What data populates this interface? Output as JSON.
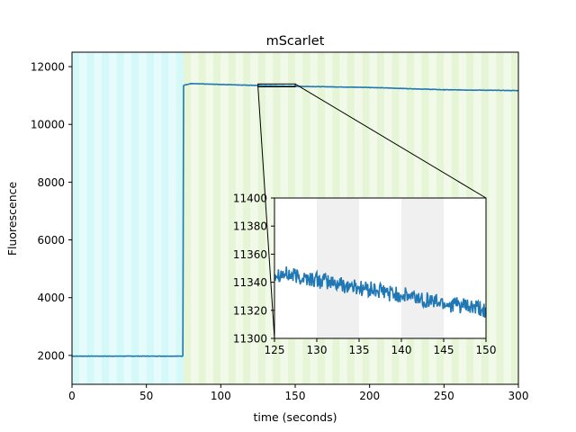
{
  "chart_data": {
    "type": "line",
    "title": "mScarlet",
    "xlabel": "time (seconds)",
    "ylabel": "Fluorescence",
    "xlim": [
      0,
      300
    ],
    "ylim": [
      1000,
      12500
    ],
    "x_ticks": [
      0,
      50,
      100,
      150,
      200,
      250,
      300
    ],
    "x_tick_labels": [
      "0",
      "50",
      "100",
      "150",
      "200",
      "250",
      "300"
    ],
    "y_ticks": [
      2000,
      4000,
      6000,
      8000,
      10000,
      12000
    ],
    "y_tick_labels": [
      "2000",
      "4000",
      "6000",
      "8000",
      "10000",
      "12000"
    ],
    "grid": false,
    "legend": "none",
    "background_bands": [
      {
        "phase": "before",
        "x_start": 0,
        "x_end": 75,
        "stripe_period": 5,
        "colors": [
          "#d5f8f8",
          "#e6fbfb"
        ]
      },
      {
        "phase": "after",
        "x_start": 75,
        "x_end": 300,
        "stripe_period": 5,
        "colors": [
          "#e6f5d5",
          "#f1f9e8"
        ]
      }
    ],
    "series": [
      {
        "color": "#1f77b4",
        "segments": [
          {
            "x_start": 0,
            "x_end": 74.5,
            "y_start": 1975,
            "y_end": 1975
          },
          {
            "x_start": 74.5,
            "x_end": 75,
            "y_start": 1975,
            "y_end": 11360
          },
          {
            "x_start": 75,
            "x_end": 80,
            "y_start": 11360,
            "y_end": 11410
          },
          {
            "x_start": 80,
            "x_end": 125,
            "y_start": 11410,
            "y_end": 11350
          },
          {
            "x_start": 125,
            "x_end": 150,
            "y_start": 11345,
            "y_end": 11320
          },
          {
            "x_start": 150,
            "x_end": 200,
            "y_start": 11320,
            "y_end": 11280
          },
          {
            "x_start": 200,
            "x_end": 250,
            "y_start": 11280,
            "y_end": 11200
          },
          {
            "x_start": 250,
            "x_end": 300,
            "y_start": 11200,
            "y_end": 11170
          }
        ]
      }
    ],
    "zoom_region": {
      "x_range": [
        125,
        150
      ],
      "y_range": [
        11300,
        11400
      ]
    },
    "inset": {
      "type": "line",
      "xlim": [
        125,
        150
      ],
      "ylim": [
        11300,
        11400
      ],
      "x_ticks": [
        125,
        130,
        135,
        140,
        145,
        150
      ],
      "x_tick_labels": [
        "125",
        "130",
        "135",
        "140",
        "145",
        "150"
      ],
      "y_ticks": [
        11300,
        11320,
        11340,
        11360,
        11380,
        11400
      ],
      "y_tick_labels": [
        "11300",
        "11320",
        "11340",
        "11360",
        "11380",
        "11400"
      ],
      "shaded_bands": [
        {
          "x_start": 130,
          "x_end": 135,
          "color": "#f0f0f0"
        },
        {
          "x_start": 140,
          "x_end": 145,
          "color": "#f0f0f0"
        }
      ],
      "series": [
        {
          "color": "#1f77b4",
          "x_start": 125,
          "x_end": 150,
          "y_start": 11347,
          "y_end": 11320,
          "noise_amplitude": 6
        }
      ]
    }
  }
}
